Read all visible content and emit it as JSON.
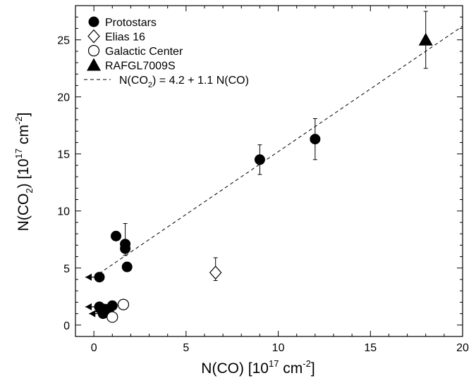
{
  "chart_data": {
    "type": "scatter",
    "xlabel": "N(CO) [10",
    "xlabel_sup": "17",
    "xlabel_mid": " cm",
    "xlabel_sup2": "-2",
    "xlabel_end": "]",
    "ylabel_prefix": "N(CO",
    "ylabel_sub": "2",
    "ylabel_mid": ") [10",
    "ylabel_sup": "17",
    "ylabel_mid2": " cm",
    "ylabel_sup2": "-2",
    "ylabel_end": "]",
    "xlim": [
      -1,
      20
    ],
    "ylim": [
      -1,
      28
    ],
    "xticks": [
      0,
      5,
      10,
      15,
      20
    ],
    "yticks": [
      0,
      5,
      10,
      15,
      20,
      25
    ],
    "grid": false,
    "legend_position": "top-left",
    "legend": [
      {
        "label": "Protostars",
        "marker": "filled-circle"
      },
      {
        "label": "Elias 16",
        "marker": "open-diamond"
      },
      {
        "label": "Galactic Center",
        "marker": "open-circle"
      },
      {
        "label": "RAFGL7009S",
        "marker": "filled-triangle"
      }
    ],
    "fit_line": {
      "label_pre": "N(CO",
      "label_sub": "2",
      "label_post": ") = 4.2 + 1.1 N(CO)",
      "intercept": 4.2,
      "slope": 1.1,
      "x_range": [
        0,
        20
      ],
      "style": "dashed"
    },
    "series": [
      {
        "name": "Protostars",
        "marker": "filled-circle",
        "points": [
          {
            "x": 0.3,
            "y": 4.2,
            "upper_limit_x": true
          },
          {
            "x": 1.2,
            "y": 7.8
          },
          {
            "x": 1.7,
            "y": 7.1,
            "yerr_up": 1.8,
            "yerr_down": 1.0
          },
          {
            "x": 1.7,
            "y": 6.7
          },
          {
            "x": 1.8,
            "y": 5.1
          },
          {
            "x": 9.0,
            "y": 14.5,
            "yerr_up": 1.3,
            "yerr_down": 1.3
          },
          {
            "x": 12.0,
            "y": 16.3,
            "yerr_up": 1.8,
            "yerr_down": 1.8
          },
          {
            "x": 0.3,
            "y": 1.6,
            "upper_limit_x": true
          },
          {
            "x": 0.6,
            "y": 1.4
          },
          {
            "x": 0.8,
            "y": 1.2,
            "upper_limit_x": true
          },
          {
            "x": 0.5,
            "y": 1.0,
            "upper_limit_x": true
          },
          {
            "x": 1.0,
            "y": 1.7
          }
        ]
      },
      {
        "name": "Elias 16",
        "marker": "open-diamond",
        "points": [
          {
            "x": 6.6,
            "y": 4.6,
            "yerr_up": 1.3,
            "yerr_down": 0.7
          }
        ]
      },
      {
        "name": "Galactic Center",
        "marker": "open-circle",
        "points": [
          {
            "x": 1.6,
            "y": 1.8,
            "xerr_right": 0.25
          },
          {
            "x": 1.0,
            "y": 0.7,
            "yerr_up": 0.3,
            "yerr_down": 0.3
          }
        ]
      },
      {
        "name": "RAFGL7009S",
        "marker": "filled-triangle",
        "points": [
          {
            "x": 18.0,
            "y": 25.0,
            "yerr_up": 2.5,
            "yerr_down": 2.5
          }
        ]
      }
    ]
  }
}
